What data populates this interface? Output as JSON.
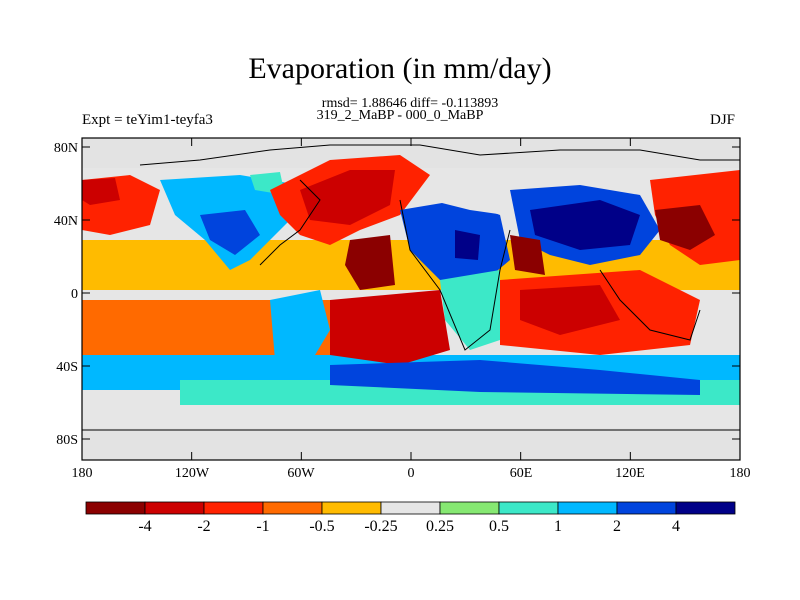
{
  "title": "Evaporation (in mm/day)",
  "stats": "rmsd= 1.88646 diff= -0.113893",
  "period": "319_2_MaBP - 000_0_MaBP",
  "experiment": "Expt = teYim1-teyfa3",
  "season": "DJF",
  "lat_ticks": [
    "80N",
    "40N",
    "0",
    "40S",
    "80S"
  ],
  "lon_ticks": [
    "180",
    "120W",
    "60W",
    "0",
    "60E",
    "120E",
    "180"
  ],
  "colorbar": {
    "colors": [
      "#8b0000",
      "#cc0000",
      "#ff2200",
      "#ff6a00",
      "#ffbb00",
      "#e6e6e6",
      "#86e872",
      "#3ce8c8",
      "#00b8ff",
      "#0044dd",
      "#000088"
    ],
    "labels": [
      "-4",
      "-2",
      "-1",
      "-0.5",
      "-0.25",
      "0.25",
      "0.5",
      "1",
      "2",
      "4"
    ]
  },
  "palette": {
    "land": "#e3e3e3",
    "dark_red": "#8b0000",
    "red": "#cc0000",
    "bright_red": "#ff2200",
    "orange": "#ff6a00",
    "yellow_orange": "#ffbb00",
    "neutral": "#e6e6e6",
    "green": "#86e872",
    "turquoise": "#3ce8c8",
    "light_blue": "#00b8ff",
    "blue": "#0044dd",
    "navy": "#000088"
  }
}
